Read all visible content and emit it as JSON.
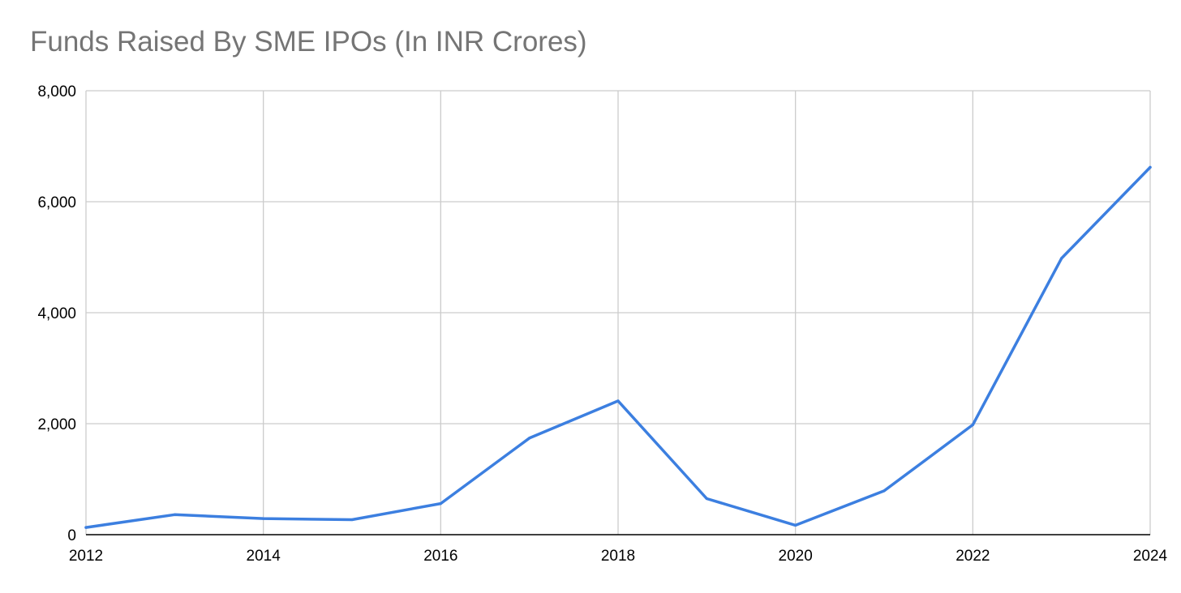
{
  "chart_data": {
    "type": "line",
    "title": "Funds Raised By SME IPOs (In INR Crores)",
    "xlabel": "",
    "ylabel": "",
    "x": [
      2012,
      2013,
      2014,
      2015,
      2016,
      2017,
      2018,
      2019,
      2020,
      2021,
      2022,
      2023,
      2024
    ],
    "series": [
      {
        "values": [
          130,
          360,
          290,
          270,
          560,
          1740,
          2410,
          650,
          170,
          790,
          1980,
          4980,
          6620
        ]
      }
    ],
    "xlim": [
      2012,
      2024
    ],
    "ylim": [
      0,
      8000
    ],
    "x_ticks": [
      2012,
      2014,
      2016,
      2018,
      2020,
      2022,
      2024
    ],
    "y_ticks": [
      0,
      2000,
      4000,
      6000,
      8000
    ],
    "x_tick_labels": [
      "2012",
      "2014",
      "2016",
      "2018",
      "2020",
      "2022",
      "2024"
    ],
    "y_tick_labels": [
      "0",
      "2,000",
      "4,000",
      "6,000",
      "8,000"
    ],
    "grid": true,
    "legend": "none",
    "colors": {
      "line": "#3c7fe0",
      "grid": "#cccccc",
      "axis": "#000000",
      "title": "#757575"
    }
  }
}
